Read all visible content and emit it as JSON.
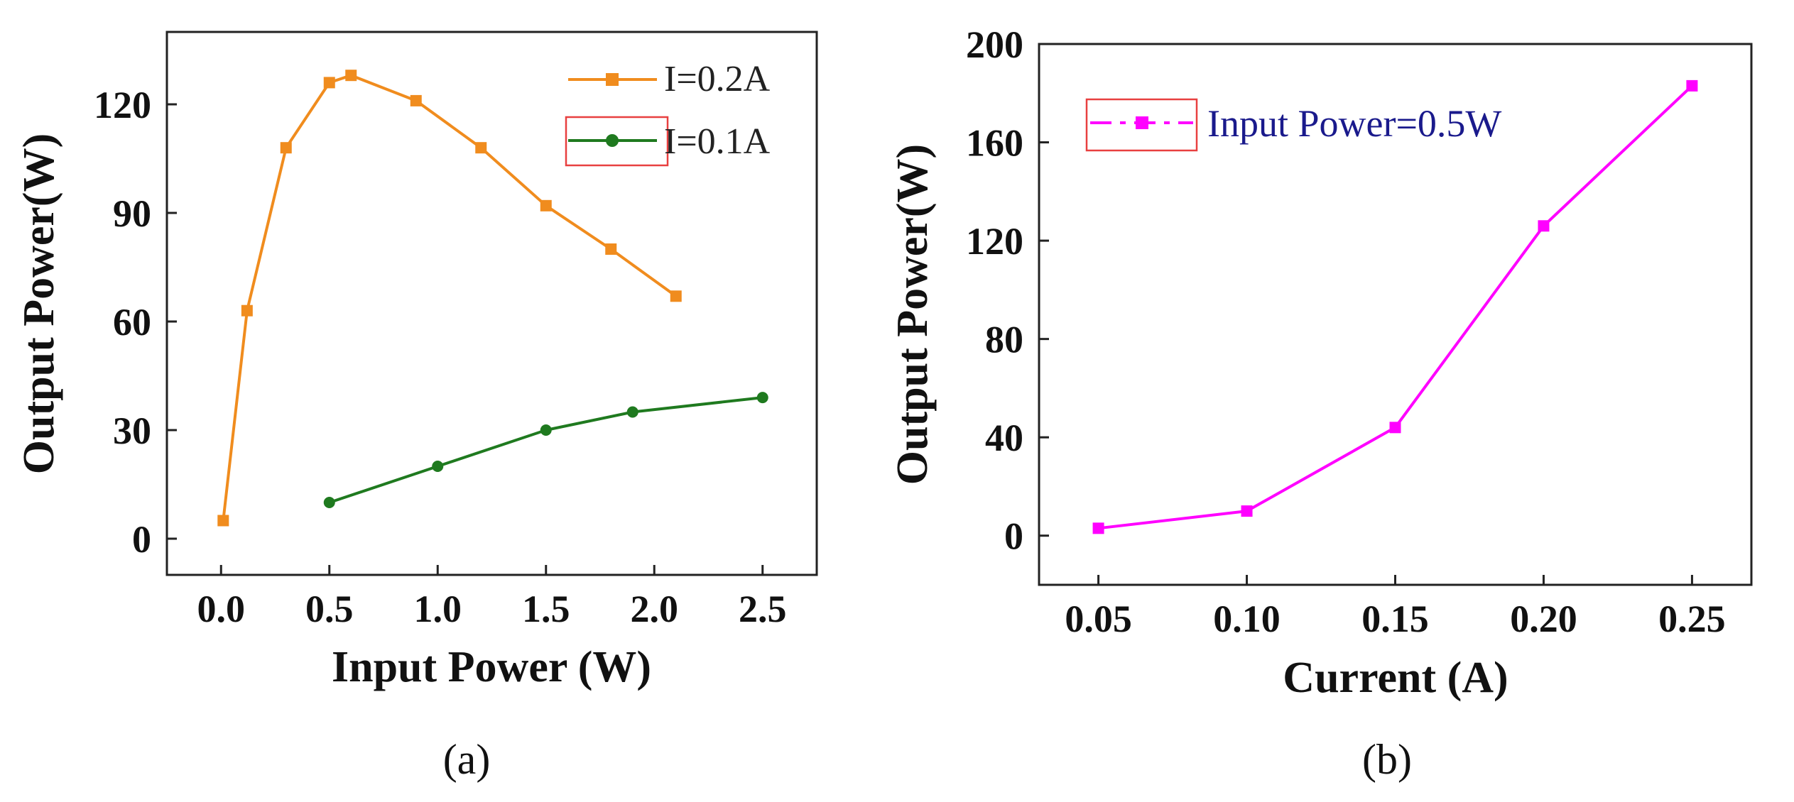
{
  "chart_data": [
    {
      "id": "a",
      "type": "line",
      "caption": "(a)",
      "xlabel": "Input Power (W)",
      "ylabel": "Output Power(W)",
      "xlim": [
        -0.25,
        2.75
      ],
      "ylim": [
        -10,
        140
      ],
      "xticks": [
        0.0,
        0.5,
        1.0,
        1.5,
        2.0,
        2.5
      ],
      "xtick_labels": [
        "0.0",
        "0.5",
        "1.0",
        "1.5",
        "2.0",
        "2.5"
      ],
      "yticks": [
        0,
        30,
        60,
        90,
        120
      ],
      "ytick_labels": [
        "0",
        "30",
        "60",
        "90",
        "120"
      ],
      "legend_position": "top-right",
      "series": [
        {
          "name": "I=0.2A",
          "color": "#f08c1e",
          "marker": "square",
          "x": [
            0.01,
            0.12,
            0.3,
            0.5,
            0.6,
            0.9,
            1.2,
            1.5,
            1.8,
            2.1
          ],
          "y": [
            5,
            63,
            108,
            126,
            128,
            121,
            108,
            92,
            80,
            67
          ]
        },
        {
          "name": "I=0.1A",
          "color": "#1f7a1f",
          "marker": "circle",
          "x": [
            0.5,
            1.0,
            1.5,
            1.9,
            2.5
          ],
          "y": [
            10,
            20,
            30,
            35,
            39
          ]
        }
      ]
    },
    {
      "id": "b",
      "type": "line",
      "caption": "(b)",
      "xlabel": "Current (A)",
      "ylabel": "Output Power(W)",
      "xlim": [
        0.03,
        0.27
      ],
      "ylim": [
        -20,
        200
      ],
      "xticks": [
        0.05,
        0.1,
        0.15,
        0.2,
        0.25
      ],
      "xtick_labels": [
        "0.05",
        "0.10",
        "0.15",
        "0.20",
        "0.25"
      ],
      "yticks": [
        0,
        40,
        80,
        120,
        160,
        200
      ],
      "ytick_labels": [
        "0",
        "40",
        "80",
        "120",
        "160",
        "200"
      ],
      "legend_position": "top-left",
      "series": [
        {
          "name": "Input Power=0.5W",
          "color": "#ff00ff",
          "marker": "square",
          "x": [
            0.05,
            0.1,
            0.15,
            0.2,
            0.25
          ],
          "y": [
            3,
            10,
            44,
            126,
            183
          ]
        }
      ]
    }
  ]
}
